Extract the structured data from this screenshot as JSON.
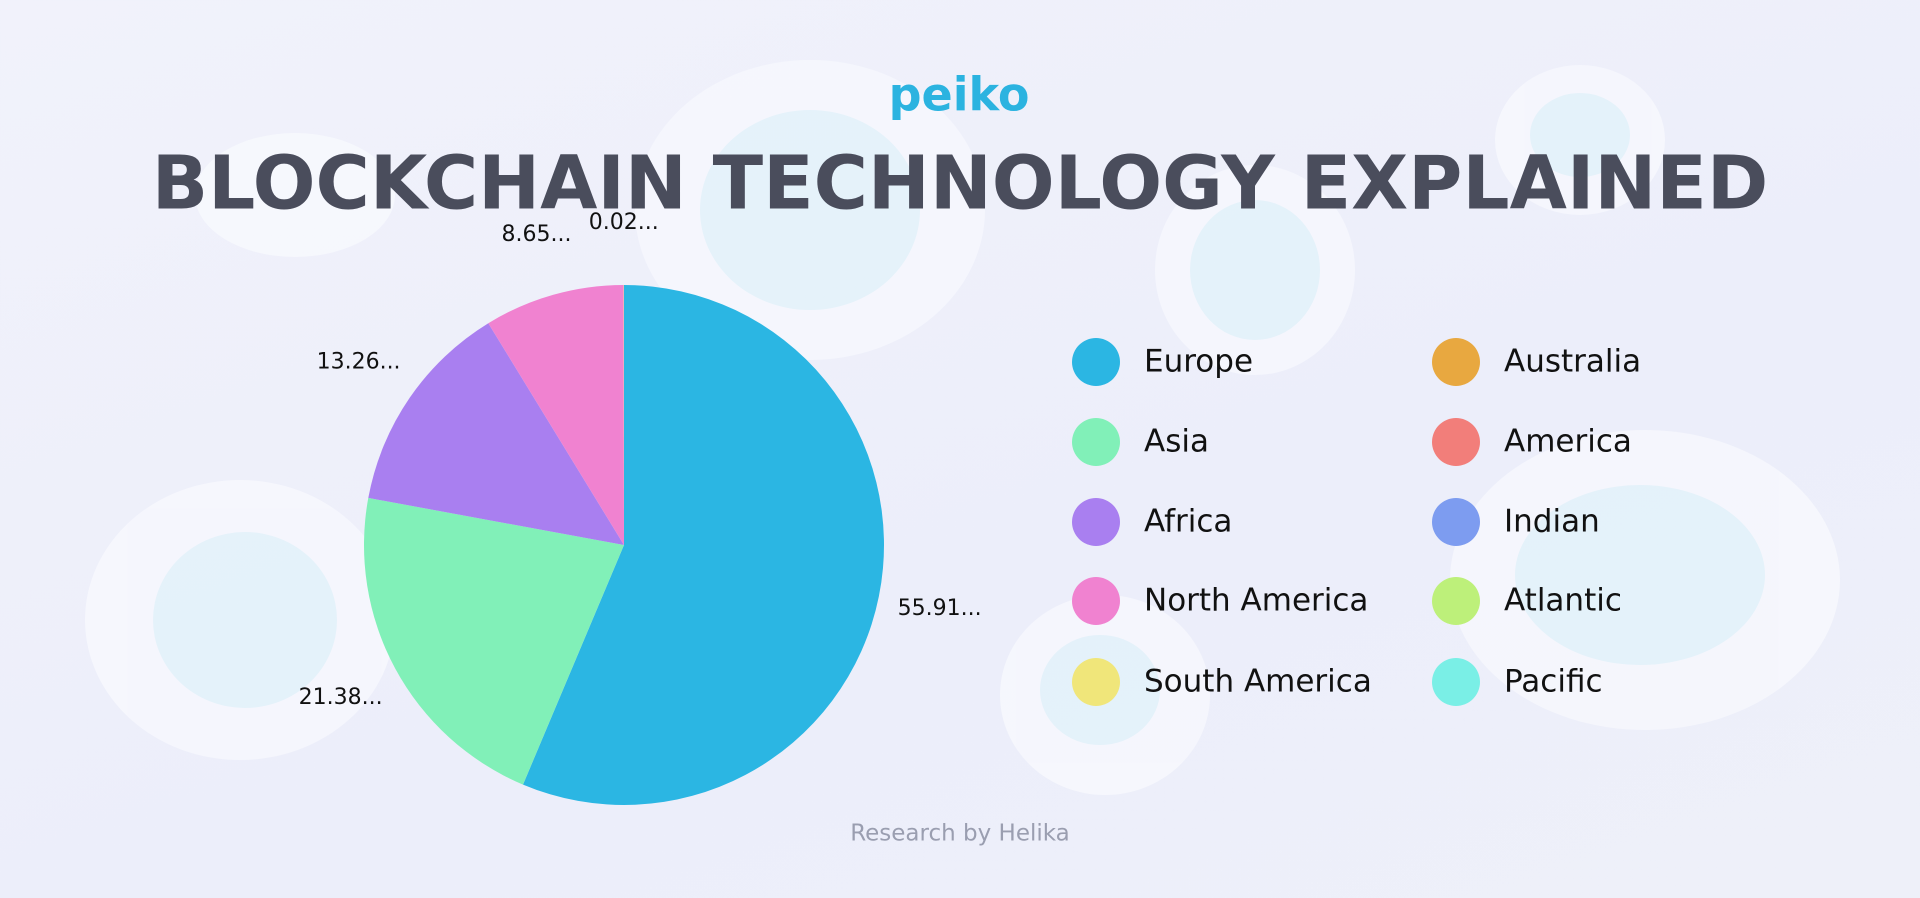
{
  "brand": "peiko",
  "footer": "Research by Helika",
  "chart_data": {
    "type": "pie",
    "title": "BLOCKCHAIN TECHNOLOGY EXPLAINED",
    "categories": [
      "Europe",
      "Asia",
      "Africa",
      "North America",
      "South America",
      "Australia",
      "America",
      "Indian",
      "Atlantic",
      "Pacific"
    ],
    "values": [
      55.91,
      21.38,
      13.26,
      8.65,
      0.02,
      null,
      null,
      null,
      null,
      null
    ],
    "value_labels": [
      "55.91...",
      "21.38...",
      "13.26...",
      "8.65...",
      "0.02...",
      null,
      null,
      null,
      null,
      null
    ],
    "colors": [
      "#2bb6e3",
      "#81f0b8",
      "#a97ff0",
      "#f082d0",
      "#f0e67a",
      "#e8a840",
      "#f27e7a",
      "#7d9cf0",
      "#bdf07a",
      "#7aefe6"
    ],
    "start_angle": 0,
    "direction": "clockwise"
  }
}
